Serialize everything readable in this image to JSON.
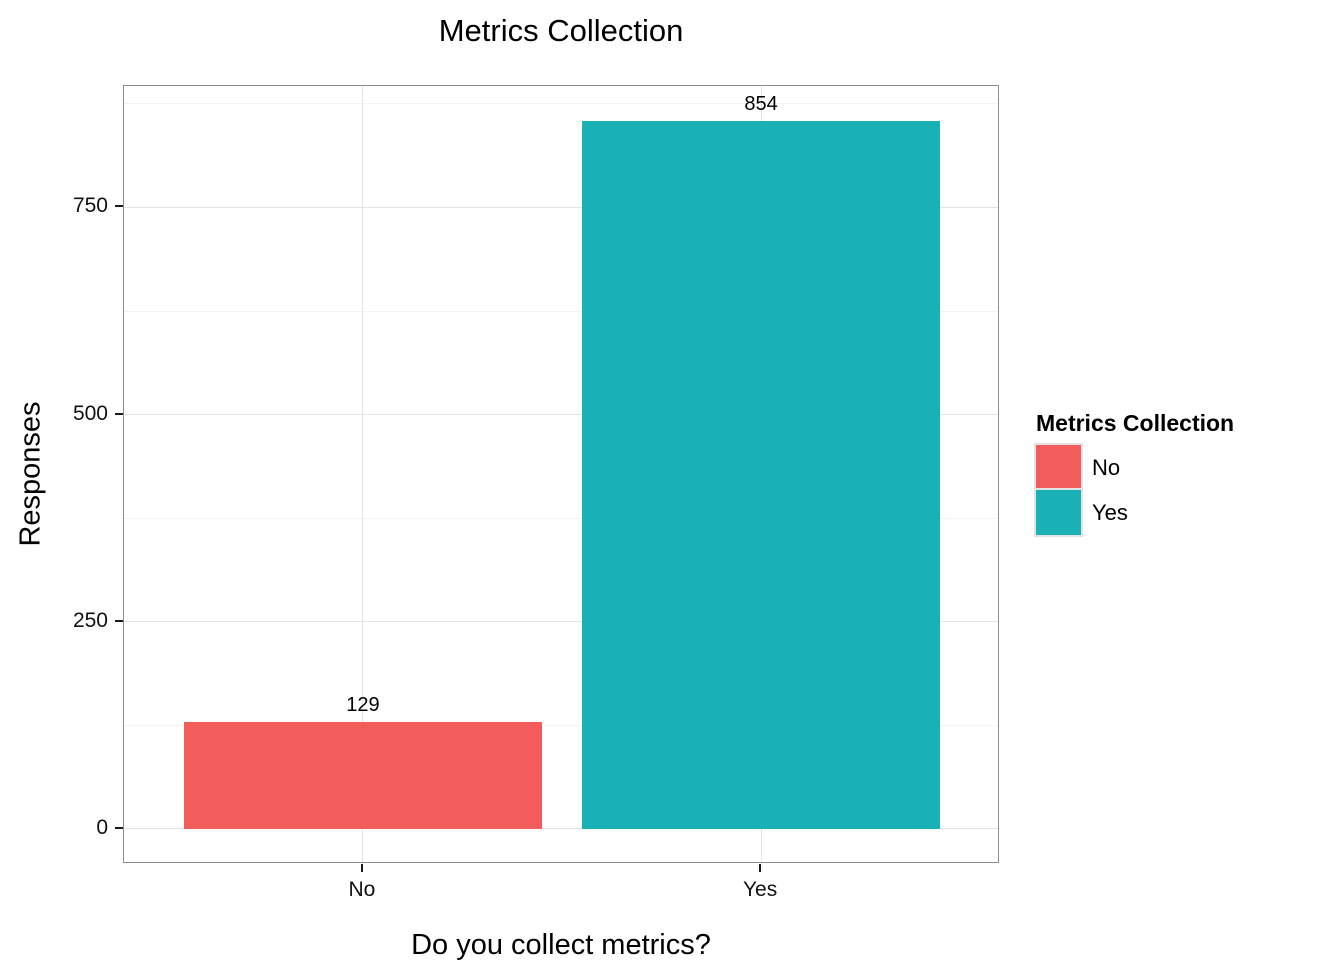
{
  "chart_data": {
    "type": "bar",
    "title": "Metrics Collection",
    "xlabel": "Do you collect metrics?",
    "ylabel": "Responses",
    "categories": [
      "No",
      "Yes"
    ],
    "values": [
      129,
      854
    ],
    "colors": {
      "No": "#F25C5A",
      "Yes": "#1AB1B6"
    },
    "y_ticks": [
      0,
      250,
      500,
      750
    ],
    "y_minor_ticks": [
      125,
      375,
      625,
      875
    ],
    "ylim": [
      0,
      854
    ],
    "grid": "white panel, light gray major and minor horizontal gridlines, major vertical gridlines at category centers",
    "legend": {
      "title": "Metrics Collection",
      "position": "right",
      "entries": [
        {
          "label": "No",
          "color": "#F25C5A"
        },
        {
          "label": "Yes",
          "color": "#1AB1B6"
        }
      ]
    }
  },
  "style_colors": {
    "panel_border": "#8c8c8c",
    "grid_major": "#e4e4e4",
    "grid_minor": "#f3f3f3",
    "tick_mark": "#1a1a1a",
    "text": "#000000",
    "background": "#ffffff"
  }
}
